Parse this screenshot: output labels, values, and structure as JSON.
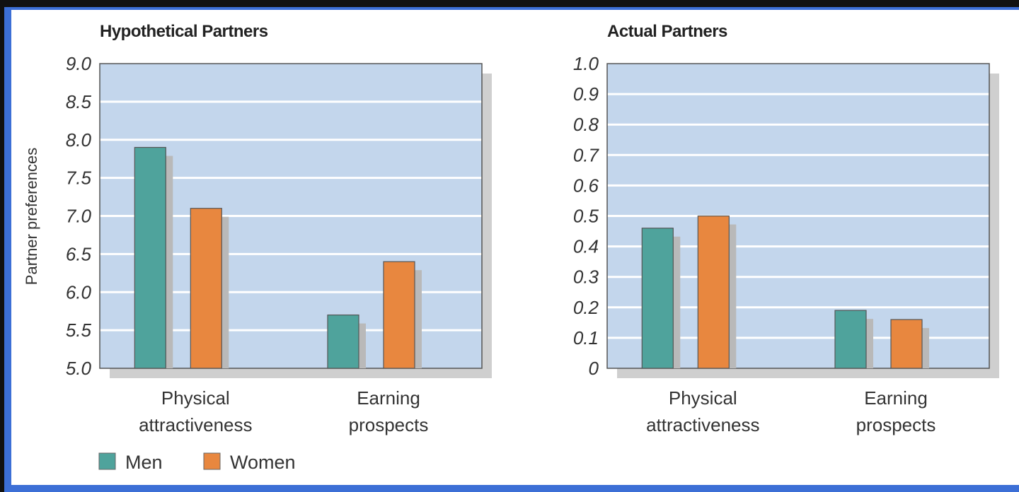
{
  "chart_data": [
    {
      "type": "bar",
      "title": "Hypothetical Partners",
      "ylabel": "Partner preferences",
      "xlabel": "",
      "categories": [
        [
          "Physical",
          "attractiveness"
        ],
        [
          "Earning",
          "prospects"
        ]
      ],
      "ylim": [
        5.0,
        9.0
      ],
      "yticks": [
        "5.0",
        "5.5",
        "6.0",
        "6.5",
        "7.0",
        "7.5",
        "8.0",
        "8.5",
        "9.0"
      ],
      "grid": true,
      "series": [
        {
          "name": "Men",
          "values": [
            7.9,
            5.7
          ]
        },
        {
          "name": "Women",
          "values": [
            7.1,
            6.4
          ]
        }
      ]
    },
    {
      "type": "bar",
      "title": "Actual Partners",
      "ylabel": "",
      "xlabel": "",
      "categories": [
        [
          "Physical",
          "attractiveness"
        ],
        [
          "Earning",
          "prospects"
        ]
      ],
      "ylim": [
        0,
        1.0
      ],
      "yticks": [
        "0",
        "0.1",
        "0.2",
        "0.3",
        "0.4",
        "0.5",
        "0.6",
        "0.7",
        "0.8",
        "0.9",
        "1.0"
      ],
      "grid": true,
      "series": [
        {
          "name": "Men",
          "values": [
            0.46,
            0.19
          ]
        },
        {
          "name": "Women",
          "values": [
            0.5,
            0.16
          ]
        }
      ]
    }
  ],
  "legend": {
    "position": "bottom-left",
    "items": [
      {
        "label": "Men",
        "color": "#4fa39c"
      },
      {
        "label": "Women",
        "color": "#e8873f"
      }
    ]
  },
  "colors": {
    "plot_bg": "#c3d6ec",
    "men": "#4fa39c",
    "women": "#e8873f",
    "frame": "#3c6fd6"
  }
}
